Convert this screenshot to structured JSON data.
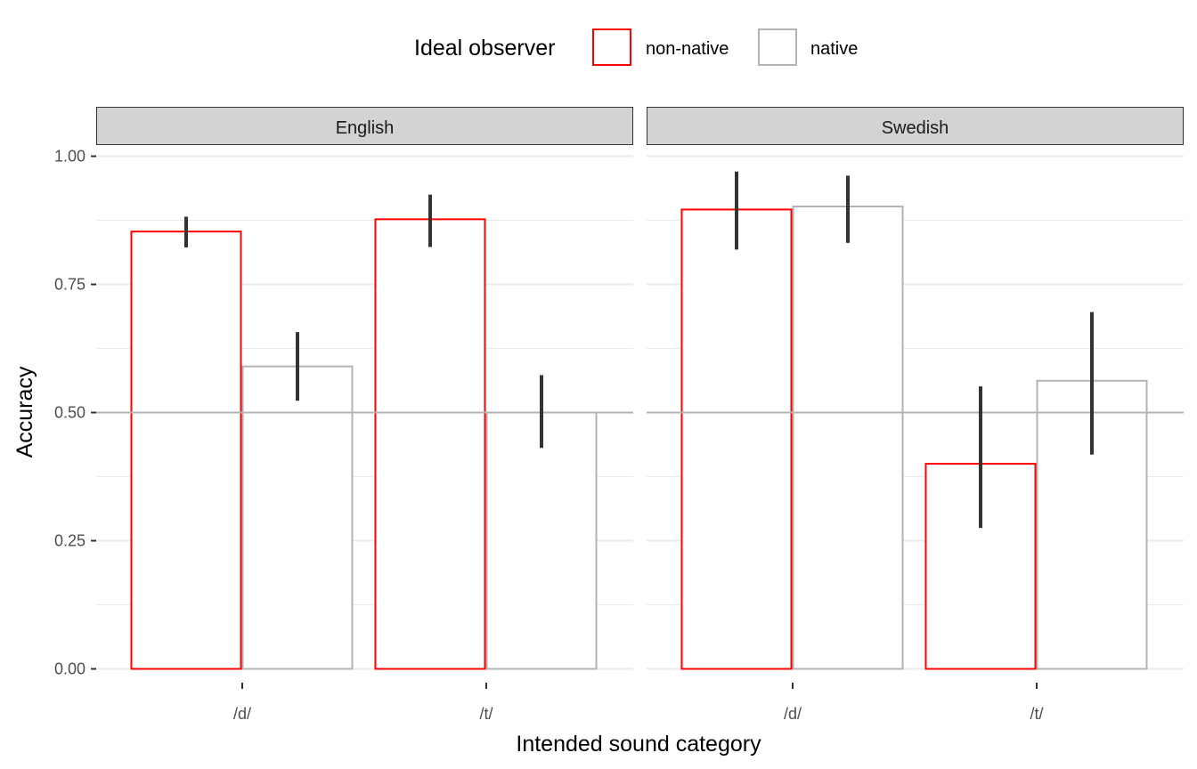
{
  "chart_data": {
    "type": "bar",
    "legend": {
      "title": "Ideal observer",
      "placement": "top",
      "entries": [
        {
          "label": "non-native",
          "color": "#ff0000"
        },
        {
          "label": "native",
          "color": "#b3b3b3"
        }
      ]
    },
    "xlabel": "Intended sound category",
    "ylabel": "Accuracy",
    "ylim": [
      0,
      1.05
    ],
    "yticks": [
      "0.00",
      "0.25",
      "0.50",
      "0.75",
      "1.00"
    ],
    "ytick_values": [
      0,
      0.25,
      0.5,
      0.75,
      1.0
    ],
    "reference_line": 0.5,
    "categories": [
      "/d/",
      "/t/"
    ],
    "grid": true,
    "panels": [
      {
        "label": "English",
        "series": [
          {
            "name": "non-native",
            "values": [
              0.853,
              0.877
            ],
            "ci_low": [
              0.822,
              0.823
            ],
            "ci_high": [
              0.882,
              0.925
            ]
          },
          {
            "name": "native",
            "values": [
              0.59,
              0.5
            ],
            "ci_low": [
              0.523,
              0.431
            ],
            "ci_high": [
              0.657,
              0.573
            ]
          }
        ]
      },
      {
        "label": "Swedish",
        "series": [
          {
            "name": "non-native",
            "values": [
              0.896,
              0.4
            ],
            "ci_low": [
              0.818,
              0.275
            ],
            "ci_high": [
              0.97,
              0.551
            ]
          },
          {
            "name": "native",
            "values": [
              0.902,
              0.562
            ],
            "ci_low": [
              0.831,
              0.418
            ],
            "ci_high": [
              0.962,
              0.696
            ]
          }
        ]
      }
    ]
  }
}
